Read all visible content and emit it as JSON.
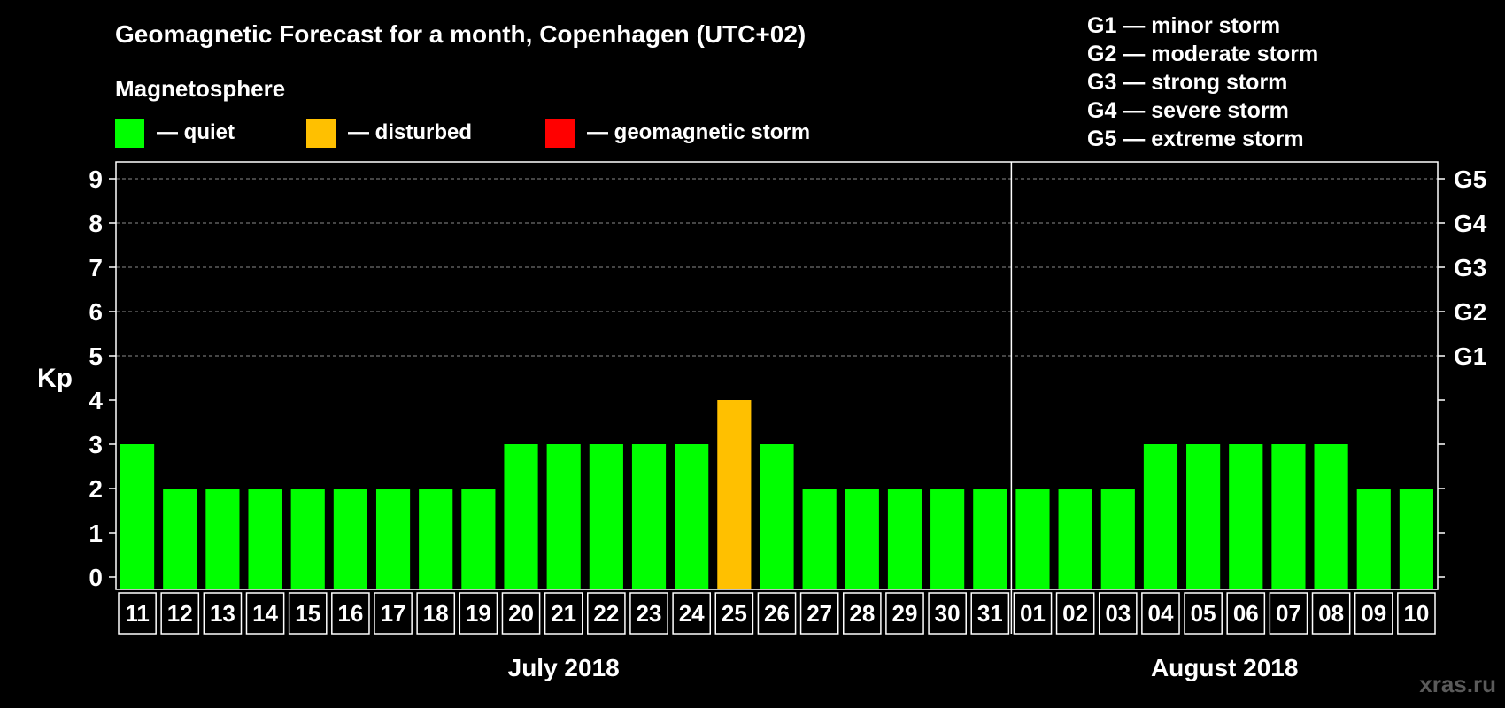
{
  "chart_data": {
    "type": "bar",
    "title": "Geomagnetic Forecast for a month, Copenhagen (UTC+02)",
    "ylabel": "Kp",
    "ylim": [
      0,
      9
    ],
    "yticks": [
      "0",
      "1",
      "2",
      "3",
      "4",
      "5",
      "6",
      "7",
      "8",
      "9"
    ],
    "right_axis_labels": [
      {
        "kp": 5,
        "label": "G1"
      },
      {
        "kp": 6,
        "label": "G2"
      },
      {
        "kp": 7,
        "label": "G3"
      },
      {
        "kp": 8,
        "label": "G4"
      },
      {
        "kp": 9,
        "label": "G5"
      }
    ],
    "categories": [
      "11",
      "12",
      "13",
      "14",
      "15",
      "16",
      "17",
      "18",
      "19",
      "20",
      "21",
      "22",
      "23",
      "24",
      "25",
      "26",
      "27",
      "28",
      "29",
      "30",
      "31",
      "01",
      "02",
      "03",
      "04",
      "05",
      "06",
      "07",
      "08",
      "09",
      "10"
    ],
    "values": [
      3,
      2,
      2,
      2,
      2,
      2,
      2,
      2,
      2,
      3,
      3,
      3,
      3,
      3,
      4,
      3,
      2,
      2,
      2,
      2,
      2,
      2,
      2,
      2,
      3,
      3,
      3,
      3,
      3,
      2,
      2
    ],
    "status": [
      "quiet",
      "quiet",
      "quiet",
      "quiet",
      "quiet",
      "quiet",
      "quiet",
      "quiet",
      "quiet",
      "quiet",
      "quiet",
      "quiet",
      "quiet",
      "quiet",
      "disturbed",
      "quiet",
      "quiet",
      "quiet",
      "quiet",
      "quiet",
      "quiet",
      "quiet",
      "quiet",
      "quiet",
      "quiet",
      "quiet",
      "quiet",
      "quiet",
      "quiet",
      "quiet",
      "quiet"
    ],
    "months": [
      {
        "label": "July 2018",
        "start_index": 0,
        "end_index": 20
      },
      {
        "label": "August 2018",
        "start_index": 21,
        "end_index": 30
      }
    ],
    "legend": {
      "title": "Magnetosphere",
      "items": [
        {
          "key": "quiet",
          "label": "— quiet",
          "color": "#00ff00"
        },
        {
          "key": "disturbed",
          "label": "— disturbed",
          "color": "#ffc000"
        },
        {
          "key": "storm",
          "label": "— geomagnetic storm",
          "color": "#ff0000"
        }
      ]
    },
    "storm_scale": [
      "G1 — minor storm",
      "G2 — moderate storm",
      "G3 — strong storm",
      "G4 — severe storm",
      "G5 — extreme storm"
    ]
  },
  "watermark": "xras.ru"
}
